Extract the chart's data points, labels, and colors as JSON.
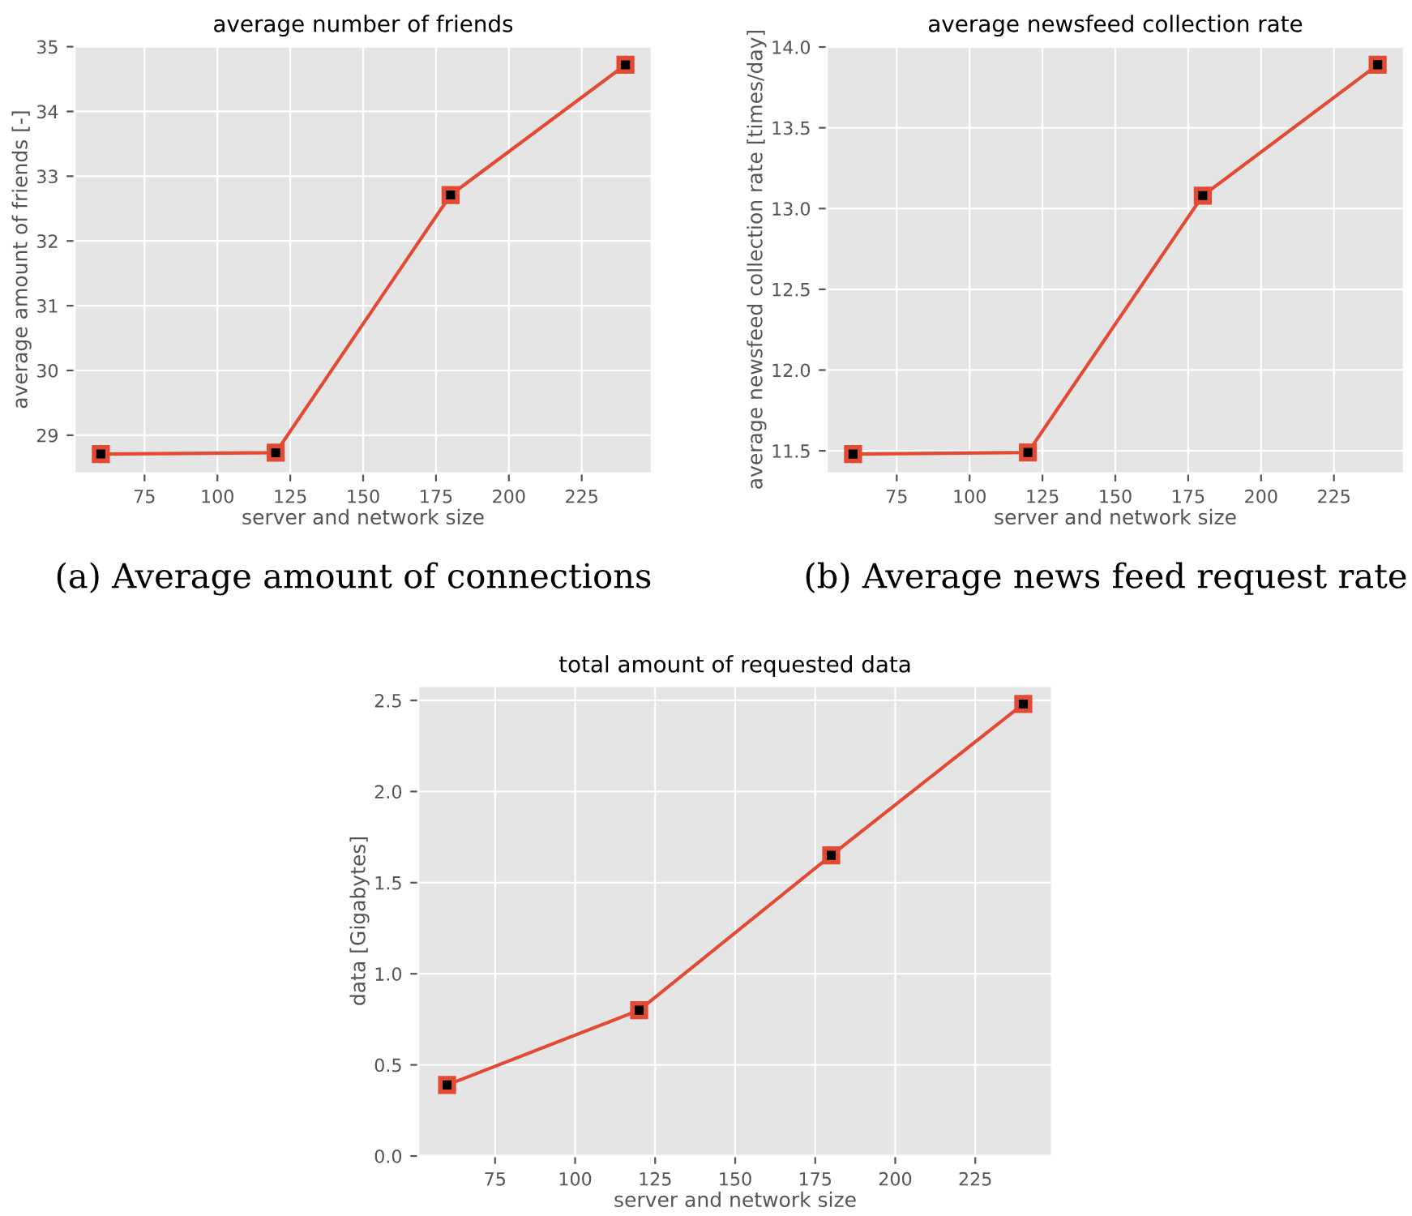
{
  "chart_data": [
    {
      "type": "line",
      "title": "average number of friends",
      "xlabel": "server and network size",
      "ylabel": "average amount of friends [-]",
      "x": [
        60,
        120,
        180,
        240
      ],
      "series": [
        {
          "color": "#e24a33",
          "values": [
            28.71,
            28.73,
            32.71,
            34.72
          ]
        }
      ],
      "xlim": [
        51,
        249
      ],
      "xticks": [
        75,
        100,
        125,
        150,
        175,
        200,
        225
      ],
      "ylim": [
        28.41,
        35.02
      ],
      "yticks": [
        29,
        30,
        31,
        32,
        33,
        34,
        35
      ],
      "grid": true,
      "marker": "square",
      "annotations": [
        "(a) Average amount of connections"
      ]
    },
    {
      "type": "line",
      "title": "average newsfeed collection rate",
      "xlabel": "server and network size",
      "ylabel": "average newsfeed collection rate [times/day]",
      "x": [
        60,
        120,
        180,
        240
      ],
      "series": [
        {
          "color": "#e24a33",
          "values": [
            11.48,
            11.49,
            13.08,
            13.89
          ]
        }
      ],
      "xlim": [
        51,
        249
      ],
      "xticks": [
        75,
        100,
        125,
        150,
        175,
        200,
        225
      ],
      "ylim": [
        11.36,
        14.01
      ],
      "yticks": [
        {
          "value": 11.5,
          "label": "11.5"
        },
        {
          "value": 12,
          "label": "12.0"
        },
        {
          "value": 12.5,
          "label": "12.5"
        },
        {
          "value": 13,
          "label": "13.0"
        },
        {
          "value": 13.5,
          "label": "13.5"
        },
        {
          "value": 14,
          "label": "14.0"
        }
      ],
      "grid": true,
      "marker": "square",
      "annotations": [
        "(b) Average news feed request rate"
      ]
    },
    {
      "type": "line",
      "title": "total amount of requested data",
      "xlabel": "server and network size",
      "ylabel": "data [Gigabytes]",
      "x": [
        60,
        120,
        180,
        240
      ],
      "series": [
        {
          "color": "#e24a33",
          "values": [
            0.39,
            0.8,
            1.65,
            2.48
          ]
        }
      ],
      "xlim": [
        51,
        249
      ],
      "xticks": [
        75,
        100,
        125,
        150,
        175,
        200,
        225
      ],
      "ylim": [
        0,
        2.58
      ],
      "yticks": [
        {
          "value": 0,
          "label": "0.0"
        },
        0.5,
        {
          "value": 1,
          "label": "1.0"
        },
        1.5,
        {
          "value": 2,
          "label": "2.0"
        },
        2.5
      ],
      "grid": true,
      "marker": "square"
    }
  ]
}
